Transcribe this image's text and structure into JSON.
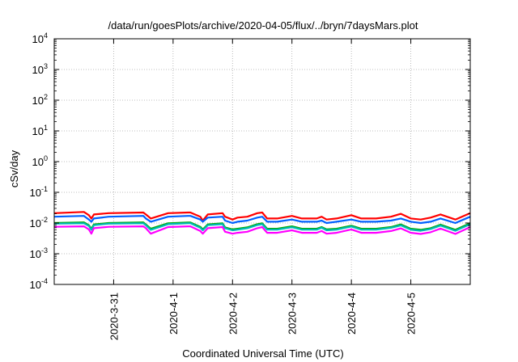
{
  "chart_data": {
    "type": "line",
    "title": "/data/run/goesPlots/archive/2020-04-05/flux/../bryn/7daysMars.plot",
    "xlabel": "Coordinated Universal Time (UTC)",
    "ylabel": "cSv/day",
    "yscale": "log",
    "ylim": [
      0.0001,
      10000
    ],
    "y_ticks": [
      {
        "base": "10",
        "exp": "-4"
      },
      {
        "base": "10",
        "exp": "-3"
      },
      {
        "base": "10",
        "exp": "-2"
      },
      {
        "base": "10",
        "exp": "-1"
      },
      {
        "base": "10",
        "exp": "0"
      },
      {
        "base": "10",
        "exp": "1"
      },
      {
        "base": "10",
        "exp": "2"
      },
      {
        "base": "10",
        "exp": "3"
      },
      {
        "base": "10",
        "exp": "4"
      }
    ],
    "x_range": [
      "2020-03-30T00:00",
      "2020-04-06T00:00"
    ],
    "x_ticks": [
      "2020-3-31",
      "2020-4-1",
      "2020-4-2",
      "2020-4-3",
      "2020-4-4",
      "2020-4-5"
    ],
    "grid": true,
    "x": [
      "2020-03-30T00:00",
      "2020-03-30T12:00",
      "2020-03-30T14:00",
      "2020-03-30T15:00",
      "2020-03-30T16:00",
      "2020-03-30T22:00",
      "2020-03-31T12:00",
      "2020-03-31T13:00",
      "2020-03-31T15:00",
      "2020-03-31T22:00",
      "2020-04-01T06:00",
      "2020-04-01T07:00",
      "2020-04-01T11:00",
      "2020-04-01T12:00",
      "2020-04-01T14:00",
      "2020-04-01T20:00",
      "2020-04-01T21:00",
      "2020-04-02T00:00",
      "2020-04-02T02:00",
      "2020-04-02T06:00",
      "2020-04-02T10:00",
      "2020-04-02T12:00",
      "2020-04-02T14:00",
      "2020-04-02T18:00",
      "2020-04-03T00:00",
      "2020-04-03T04:00",
      "2020-04-03T10:00",
      "2020-04-03T12:00",
      "2020-04-03T14:00",
      "2020-04-03T18:00",
      "2020-04-04T00:00",
      "2020-04-04T04:00",
      "2020-04-04T10:00",
      "2020-04-04T16:00",
      "2020-04-04T20:00",
      "2020-04-05T00:00",
      "2020-04-05T04:00",
      "2020-04-05T08:00",
      "2020-04-05T12:00",
      "2020-04-05T18:00",
      "2020-04-06T00:00"
    ],
    "series": [
      {
        "color": "#ff0000",
        "values": [
          0.021,
          0.023,
          0.018,
          0.014,
          0.019,
          0.021,
          0.022,
          0.019,
          0.014,
          0.021,
          0.022,
          0.022,
          0.016,
          0.012,
          0.019,
          0.021,
          0.016,
          0.013,
          0.015,
          0.016,
          0.021,
          0.022,
          0.014,
          0.014,
          0.017,
          0.014,
          0.014,
          0.016,
          0.013,
          0.014,
          0.018,
          0.014,
          0.014,
          0.016,
          0.02,
          0.014,
          0.013,
          0.015,
          0.019,
          0.013,
          0.021
        ]
      },
      {
        "color": "#0060ff",
        "values": [
          0.016,
          0.017,
          0.013,
          0.011,
          0.014,
          0.016,
          0.017,
          0.014,
          0.011,
          0.016,
          0.017,
          0.017,
          0.013,
          0.011,
          0.015,
          0.016,
          0.012,
          0.01,
          0.011,
          0.012,
          0.015,
          0.016,
          0.011,
          0.011,
          0.013,
          0.011,
          0.011,
          0.012,
          0.01,
          0.011,
          0.013,
          0.011,
          0.011,
          0.012,
          0.014,
          0.011,
          0.01,
          0.011,
          0.014,
          0.01,
          0.016
        ]
      },
      {
        "color": "#00aa00",
        "values": [
          0.01,
          0.0105,
          0.0085,
          0.0065,
          0.009,
          0.01,
          0.0105,
          0.009,
          0.0065,
          0.0098,
          0.0104,
          0.0104,
          0.0075,
          0.0062,
          0.009,
          0.0098,
          0.0072,
          0.0062,
          0.0065,
          0.0072,
          0.0092,
          0.0098,
          0.0065,
          0.0065,
          0.0078,
          0.0065,
          0.0065,
          0.0074,
          0.0062,
          0.0065,
          0.0082,
          0.0065,
          0.0065,
          0.0074,
          0.009,
          0.0065,
          0.006,
          0.0068,
          0.0088,
          0.006,
          0.0098
        ]
      },
      {
        "color": "#00b8b8",
        "values": [
          0.0095,
          0.0098,
          0.008,
          0.006,
          0.0085,
          0.0095,
          0.0098,
          0.0085,
          0.006,
          0.0092,
          0.0098,
          0.0098,
          0.007,
          0.0058,
          0.0085,
          0.0092,
          0.0068,
          0.0058,
          0.0061,
          0.0068,
          0.0086,
          0.0092,
          0.0061,
          0.0061,
          0.0073,
          0.0061,
          0.0061,
          0.007,
          0.0058,
          0.0061,
          0.0077,
          0.0061,
          0.0061,
          0.007,
          0.0084,
          0.0061,
          0.0056,
          0.0064,
          0.0083,
          0.0056,
          0.0092
        ]
      },
      {
        "color": "#ff00ff",
        "values": [
          0.0075,
          0.0078,
          0.0062,
          0.0045,
          0.0068,
          0.0075,
          0.0078,
          0.0068,
          0.0045,
          0.0074,
          0.0078,
          0.0078,
          0.0055,
          0.0045,
          0.0068,
          0.0074,
          0.0052,
          0.0045,
          0.0048,
          0.0052,
          0.0068,
          0.0074,
          0.0048,
          0.0048,
          0.0058,
          0.0048,
          0.0048,
          0.0055,
          0.0045,
          0.0048,
          0.0062,
          0.0048,
          0.0048,
          0.0055,
          0.0067,
          0.0048,
          0.0044,
          0.005,
          0.0066,
          0.0044,
          0.0074
        ]
      }
    ]
  }
}
